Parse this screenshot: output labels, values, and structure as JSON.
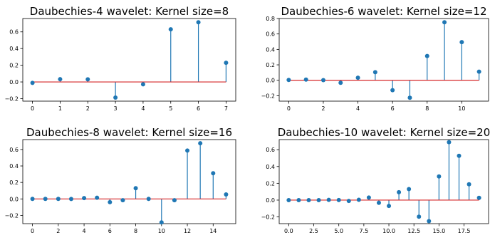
{
  "colors": {
    "stem": "#1f77b4",
    "baseline": "#d62728",
    "axis": "#000000"
  },
  "chart_data": [
    {
      "type": "stem",
      "title": "Daubechies-4 wavelet: Kernel size=8",
      "x": [
        0,
        1,
        2,
        3,
        4,
        5,
        6,
        7
      ],
      "values": [
        -0.011,
        0.033,
        0.031,
        -0.187,
        -0.028,
        0.631,
        0.715,
        0.23
      ],
      "xlim": [
        -0.35,
        7.35
      ],
      "ylim": [
        -0.23,
        0.76
      ],
      "xticks": [
        0,
        1,
        2,
        3,
        4,
        5,
        6,
        7
      ],
      "xtick_labels": [
        "0",
        "1",
        "2",
        "3",
        "4",
        "5",
        "6",
        "7"
      ],
      "yticks": [
        -0.2,
        0.0,
        0.2,
        0.4,
        0.6
      ],
      "ytick_labels": [
        "−0.2",
        "0.0",
        "0.2",
        "0.4",
        "0.6"
      ]
    },
    {
      "type": "stem",
      "title": "Daubechies-6 wavelet: Kernel size=12",
      "x": [
        0,
        1,
        2,
        3,
        4,
        5,
        6,
        7,
        8,
        9,
        10,
        11
      ],
      "values": [
        0.004,
        0.009,
        0.002,
        -0.032,
        0.033,
        0.105,
        -0.128,
        -0.226,
        0.315,
        0.752,
        0.494,
        0.112
      ],
      "xlim": [
        -0.55,
        11.55
      ],
      "ylim": [
        -0.27,
        0.8
      ],
      "xticks": [
        0,
        2,
        4,
        6,
        8,
        10
      ],
      "xtick_labels": [
        "0",
        "2",
        "4",
        "6",
        "8",
        "10"
      ],
      "yticks": [
        -0.2,
        0.0,
        0.2,
        0.4,
        0.6,
        0.8
      ],
      "ytick_labels": [
        "−0.2",
        "0.0",
        "0.2",
        "0.4",
        "0.6",
        "0.8"
      ]
    },
    {
      "type": "stem",
      "title": "Daubechies-8 wavelet: Kernel size=16",
      "x": [
        0,
        1,
        2,
        3,
        4,
        5,
        6,
        7,
        8,
        9,
        10,
        11,
        12,
        13,
        14,
        15
      ],
      "values": [
        0.0,
        0.0,
        0.0,
        -0.001,
        0.01,
        0.014,
        -0.04,
        -0.016,
        0.13,
        0.0,
        -0.285,
        -0.016,
        0.587,
        0.676,
        0.312,
        0.054
      ],
      "xlim": [
        -0.75,
        15.75
      ],
      "ylim": [
        -0.3,
        0.72
      ],
      "xticks": [
        0,
        2,
        4,
        6,
        8,
        10,
        12,
        14
      ],
      "xtick_labels": [
        "0",
        "2",
        "4",
        "6",
        "8",
        "10",
        "12",
        "14"
      ],
      "yticks": [
        -0.2,
        0.0,
        0.2,
        0.4,
        0.6
      ],
      "ytick_labels": [
        "−0.2",
        "0.0",
        "0.2",
        "0.4",
        "0.6"
      ]
    },
    {
      "type": "stem",
      "title": "Daubechies-10 wavelet: Kernel size=20",
      "x": [
        0,
        1,
        2,
        3,
        4,
        5,
        6,
        7,
        8,
        9,
        10,
        11,
        12,
        13,
        14,
        15,
        16,
        17,
        18,
        19
      ],
      "values": [
        0.0,
        0.0,
        0.0,
        0.0,
        0.003,
        0.001,
        -0.01,
        0.004,
        0.03,
        -0.032,
        -0.069,
        0.094,
        0.131,
        -0.197,
        -0.25,
        0.281,
        0.689,
        0.527,
        0.188,
        0.027
      ],
      "xlim": [
        -0.95,
        19.95
      ],
      "ylim": [
        -0.28,
        0.72
      ],
      "xticks": [
        0.0,
        2.5,
        5.0,
        7.5,
        10.0,
        12.5,
        15.0,
        17.5
      ],
      "xtick_labels": [
        "0.0",
        "2.5",
        "5.0",
        "7.5",
        "10.0",
        "12.5",
        "15.0",
        "17.5"
      ],
      "yticks": [
        -0.2,
        0.0,
        0.2,
        0.4,
        0.6
      ],
      "ytick_labels": [
        "−0.2",
        "0.0",
        "0.2",
        "0.4",
        "0.6"
      ]
    }
  ]
}
